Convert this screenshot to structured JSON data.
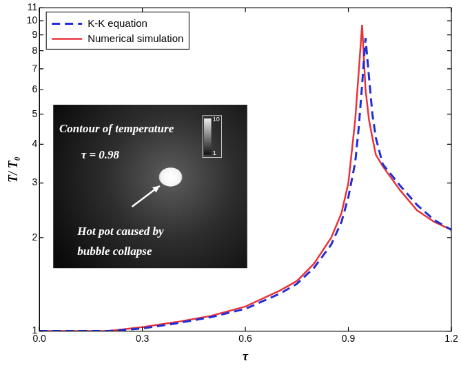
{
  "chart_data": {
    "type": "line",
    "x_label": "τ",
    "y_label": "T/ T₀",
    "log": "y",
    "grid": false,
    "legend": "upper left",
    "xlim": [
      0,
      1.2
    ],
    "xticks": [
      {
        "value": 0,
        "label": "0.0"
      },
      0.3,
      0.6,
      0.9,
      1.2
    ],
    "ylim": [
      1,
      11
    ],
    "yticks": [
      1,
      2,
      3,
      4,
      5,
      6,
      7,
      8,
      9,
      10,
      11
    ],
    "x": [
      0,
      0.1,
      0.2,
      0.3,
      0.4,
      0.5,
      0.6,
      0.7,
      0.75,
      0.8,
      0.85,
      0.88,
      0.9,
      0.92,
      0.93,
      0.94,
      0.95,
      0.96,
      0.97,
      0.98,
      1.0,
      1.05,
      1.1,
      1.15,
      1.2
    ],
    "series": [
      {
        "name": "K-K equation",
        "color": "#1f2fd6",
        "line_style": "dashed",
        "values": [
          1,
          1,
          1,
          1.02,
          1.06,
          1.11,
          1.18,
          1.32,
          1.42,
          1.6,
          1.9,
          2.25,
          2.7,
          3.5,
          4.5,
          6.2,
          8.8,
          6.6,
          5.0,
          4.2,
          3.45,
          2.95,
          2.55,
          2.28,
          2.12
        ]
      },
      {
        "name": "Numerical simulation",
        "color": "#e8333a",
        "line_style": "solid",
        "values": [
          1,
          1,
          1,
          1.03,
          1.07,
          1.12,
          1.2,
          1.35,
          1.45,
          1.65,
          2.0,
          2.4,
          3.0,
          4.8,
          6.8,
          9.7,
          6.0,
          4.8,
          4.2,
          3.7,
          3.4,
          2.85,
          2.45,
          2.25,
          2.12
        ]
      }
    ],
    "inset": {
      "title": "Contour of temperature",
      "time_label": "τ = 0.98",
      "caption": [
        "Hot pot caused by",
        "bubble collapse"
      ],
      "colorbar": {
        "range": [
          1,
          10
        ],
        "ticks": [
          1,
          10
        ]
      }
    }
  }
}
